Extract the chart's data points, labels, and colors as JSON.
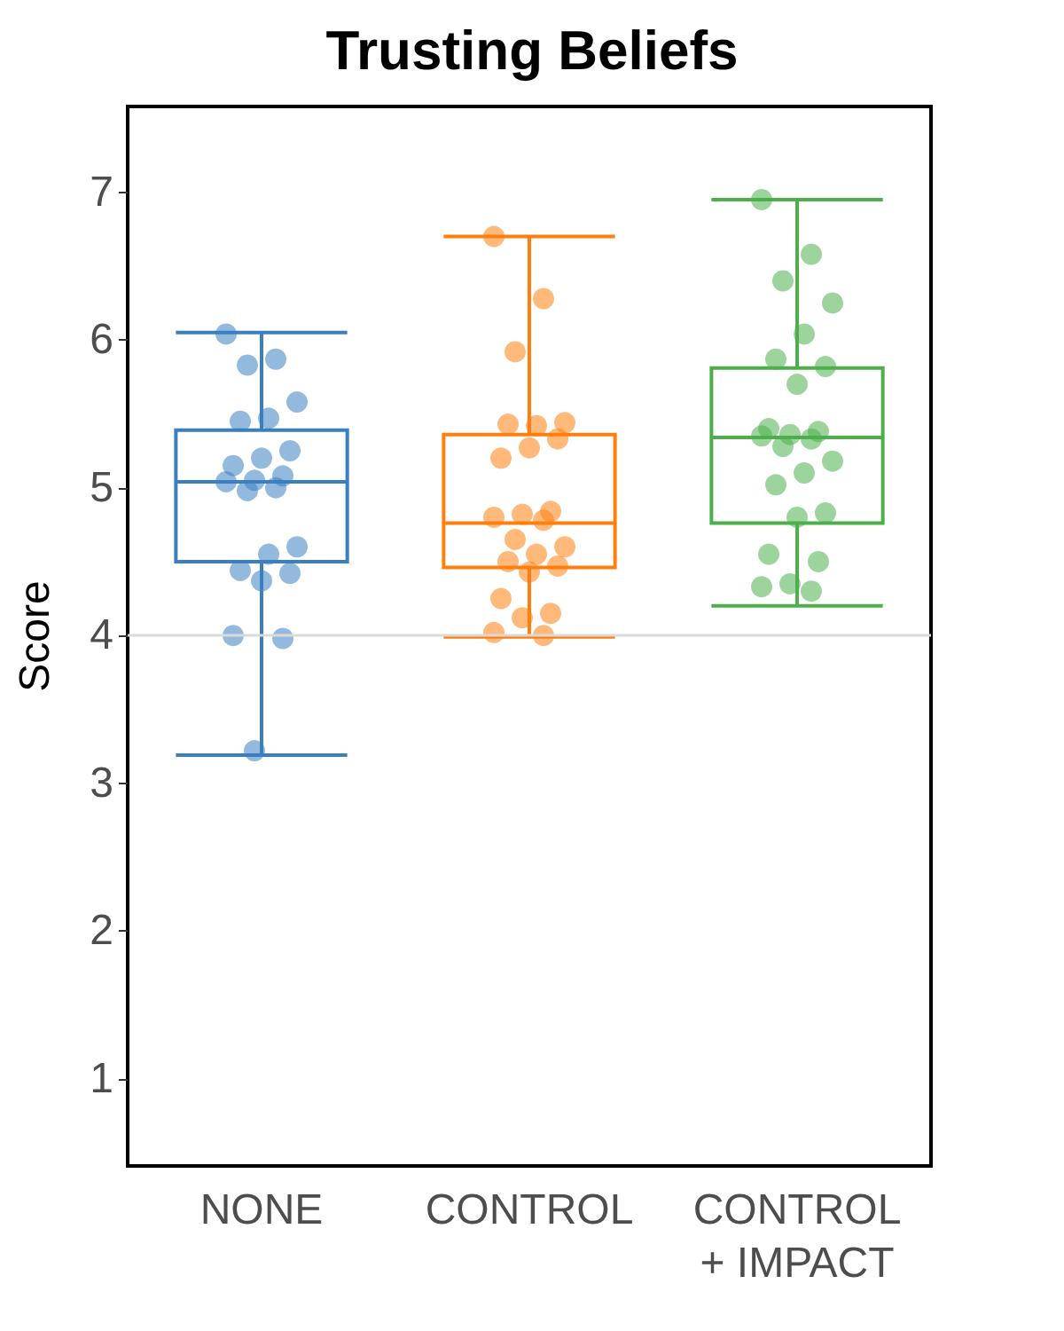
{
  "chart_data": {
    "type": "box",
    "title": "Trusting Beliefs",
    "ylabel": "Score",
    "categories": [
      "NONE",
      "CONTROL",
      "CONTROL\n+ IMPACT"
    ],
    "colors": [
      "#3a7fc1",
      "#ff7f0e",
      "#4daf4a"
    ],
    "boxes": [
      {
        "low": 3.19,
        "q1": 4.5,
        "median": 5.04,
        "q3": 5.39,
        "high": 6.05
      },
      {
        "low": 3.99,
        "q1": 4.46,
        "median": 4.76,
        "q3": 5.36,
        "high": 6.7
      },
      {
        "low": 4.2,
        "q1": 4.76,
        "median": 5.34,
        "q3": 5.81,
        "high": 6.95
      }
    ],
    "series": [
      {
        "type": "scatter",
        "color": "#3a7fc1",
        "x": [
          "NONE",
          "NONE",
          "NONE",
          "NONE",
          "NONE",
          "NONE",
          "NONE",
          "NONE",
          "NONE",
          "NONE",
          "NONE",
          "NONE",
          "NONE",
          "NONE",
          "NONE",
          "NONE",
          "NONE",
          "NONE",
          "NONE",
          "NONE",
          "NONE",
          "NONE"
        ],
        "values": [
          6.04,
          5.87,
          5.83,
          5.58,
          5.47,
          5.45,
          5.25,
          5.2,
          5.15,
          5.08,
          5.05,
          5.04,
          5.0,
          4.98,
          4.6,
          4.55,
          4.44,
          4.42,
          4.37,
          4.0,
          3.98,
          3.22
        ]
      },
      {
        "type": "scatter",
        "color": "#ff7f0e",
        "x": [
          "CONTROL",
          "CONTROL",
          "CONTROL",
          "CONTROL",
          "CONTROL",
          "CONTROL",
          "CONTROL",
          "CONTROL",
          "CONTROL",
          "CONTROL",
          "CONTROL",
          "CONTROL",
          "CONTROL",
          "CONTROL",
          "CONTROL",
          "CONTROL",
          "CONTROL",
          "CONTROL",
          "CONTROL",
          "CONTROL",
          "CONTROL",
          "CONTROL",
          "CONTROL",
          "CONTROL"
        ],
        "values": [
          6.7,
          6.28,
          5.92,
          5.44,
          5.42,
          5.43,
          5.33,
          5.27,
          5.2,
          4.84,
          4.82,
          4.8,
          4.78,
          4.65,
          4.6,
          4.55,
          4.5,
          4.47,
          4.43,
          4.25,
          4.15,
          4.12,
          4.02,
          4.0
        ]
      },
      {
        "type": "scatter",
        "color": "#4daf4a",
        "x": [
          "CONTROL\n+ IMPACT",
          "CONTROL\n+ IMPACT",
          "CONTROL\n+ IMPACT",
          "CONTROL\n+ IMPACT",
          "CONTROL\n+ IMPACT",
          "CONTROL\n+ IMPACT",
          "CONTROL\n+ IMPACT",
          "CONTROL\n+ IMPACT",
          "CONTROL\n+ IMPACT",
          "CONTROL\n+ IMPACT",
          "CONTROL\n+ IMPACT",
          "CONTROL\n+ IMPACT",
          "CONTROL\n+ IMPACT",
          "CONTROL\n+ IMPACT",
          "CONTROL\n+ IMPACT",
          "CONTROL\n+ IMPACT",
          "CONTROL\n+ IMPACT",
          "CONTROL\n+ IMPACT",
          "CONTROL\n+ IMPACT",
          "CONTROL\n+ IMPACT",
          "CONTROL\n+ IMPACT",
          "CONTROL\n+ IMPACT",
          "CONTROL\n+ IMPACT",
          "CONTROL\n+ IMPACT"
        ],
        "values": [
          6.95,
          6.58,
          6.4,
          6.25,
          6.04,
          5.87,
          5.82,
          5.7,
          5.4,
          5.38,
          5.36,
          5.35,
          5.33,
          5.28,
          5.18,
          5.1,
          5.02,
          4.83,
          4.8,
          4.55,
          4.5,
          4.35,
          4.33,
          4.3
        ]
      }
    ],
    "ylim": [
      0.41,
      7.58
    ],
    "yticks": [
      1,
      2,
      3,
      4,
      5,
      6,
      7
    ],
    "ref_lines": [
      {
        "axis": "y",
        "value": 4,
        "color": "#d9d9d9"
      }
    ],
    "grid": false,
    "marker": "circle"
  }
}
